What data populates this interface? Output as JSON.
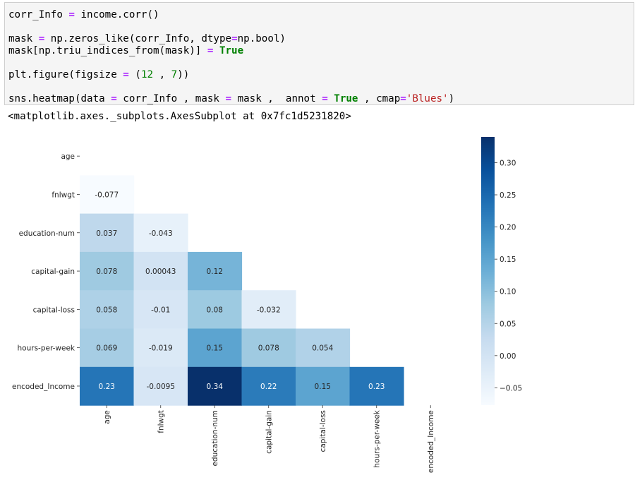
{
  "code_cell": {
    "lines": [
      [
        "corr_Info ",
        "=",
        " income.corr()"
      ],
      [
        "mask ",
        "=",
        " np.zeros_like(corr_Info, dtype",
        "=",
        "np.bool)"
      ],
      [
        "mask[np.triu_indices_from(mask)] ",
        "=",
        " ",
        "True"
      ],
      [
        "plt.figure(figsize ",
        "=",
        " (",
        "12",
        " , ",
        "7",
        "))"
      ],
      [
        "sns.heatmap(data ",
        "=",
        " corr_Info , mask ",
        "=",
        " mask ,  annot ",
        "=",
        " ",
        "True",
        " , cmap",
        "=",
        "'Blues'",
        ")"
      ]
    ]
  },
  "output": {
    "text": "<matplotlib.axes._subplots.AxesSubplot at 0x7fc1d5231820>"
  },
  "chart_data": {
    "type": "heatmap",
    "labels": [
      "age",
      "fnlwgt",
      "education-num",
      "capital-gain",
      "capital-loss",
      "hours-per-week",
      "encoded_Income"
    ],
    "cells": [
      {
        "row": 1,
        "col": 0,
        "value": -0.077,
        "annot": "-0.077"
      },
      {
        "row": 2,
        "col": 0,
        "value": 0.037,
        "annot": "0.037"
      },
      {
        "row": 2,
        "col": 1,
        "value": -0.043,
        "annot": "-0.043"
      },
      {
        "row": 3,
        "col": 0,
        "value": 0.078,
        "annot": "0.078"
      },
      {
        "row": 3,
        "col": 1,
        "value": 0.00043,
        "annot": "0.00043"
      },
      {
        "row": 3,
        "col": 2,
        "value": 0.12,
        "annot": "0.12"
      },
      {
        "row": 4,
        "col": 0,
        "value": 0.058,
        "annot": "0.058"
      },
      {
        "row": 4,
        "col": 1,
        "value": -0.01,
        "annot": "-0.01"
      },
      {
        "row": 4,
        "col": 2,
        "value": 0.08,
        "annot": "0.08"
      },
      {
        "row": 4,
        "col": 3,
        "value": -0.032,
        "annot": "-0.032"
      },
      {
        "row": 5,
        "col": 0,
        "value": 0.069,
        "annot": "0.069"
      },
      {
        "row": 5,
        "col": 1,
        "value": -0.019,
        "annot": "-0.019"
      },
      {
        "row": 5,
        "col": 2,
        "value": 0.15,
        "annot": "0.15"
      },
      {
        "row": 5,
        "col": 3,
        "value": 0.078,
        "annot": "0.078"
      },
      {
        "row": 5,
        "col": 4,
        "value": 0.054,
        "annot": "0.054"
      },
      {
        "row": 6,
        "col": 0,
        "value": 0.23,
        "annot": "0.23"
      },
      {
        "row": 6,
        "col": 1,
        "value": -0.0095,
        "annot": "-0.0095"
      },
      {
        "row": 6,
        "col": 2,
        "value": 0.34,
        "annot": "0.34"
      },
      {
        "row": 6,
        "col": 3,
        "value": 0.22,
        "annot": "0.22"
      },
      {
        "row": 6,
        "col": 4,
        "value": 0.15,
        "annot": "0.15"
      },
      {
        "row": 6,
        "col": 5,
        "value": 0.23,
        "annot": "0.23"
      }
    ],
    "vmin": -0.077,
    "vmax": 0.34,
    "colormap": "Blues",
    "colorbar_ticks": [
      -0.05,
      0.0,
      0.05,
      0.1,
      0.15,
      0.2,
      0.25,
      0.3
    ],
    "colorbar_tick_labels": [
      "−0.05",
      "0.00",
      "0.05",
      "0.10",
      "0.15",
      "0.20",
      "0.25",
      "0.30"
    ]
  }
}
